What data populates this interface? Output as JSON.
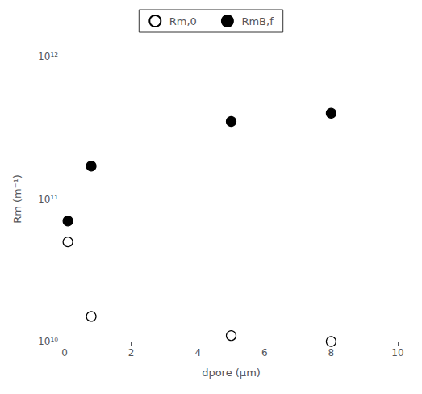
{
  "chart_data": {
    "type": "scatter",
    "x_label": "dpore (μm)",
    "y_label": "Rm (m⁻¹)",
    "series": [
      {
        "name": "Rm,0",
        "marker": "open_circle",
        "color": "black",
        "x": [
          0.1,
          0.8,
          5.0,
          8.0
        ],
        "values": [
          50000000000.0,
          15000000000.0,
          11000000000.0,
          10000000000.0
        ]
      },
      {
        "name": "RmB,f",
        "marker": "filled_circle",
        "color": "black",
        "x": [
          0.1,
          0.8,
          5.0,
          8.0
        ],
        "values": [
          70000000000.0,
          170000000000.0,
          350000000000.0,
          400000000000.0
        ]
      }
    ],
    "xlim": [
      0,
      10
    ],
    "xticks": [
      0,
      2,
      4,
      6,
      8,
      10
    ],
    "ylim": [
      10000000000.0,
      1000000000000.0
    ],
    "yticks": [
      {
        "value": 10000000000.0,
        "label": "10¹⁰"
      },
      {
        "value": 100000000000.0,
        "label": "10¹¹"
      },
      {
        "value": 1000000000000.0,
        "label": "10¹²"
      }
    ],
    "log": "y",
    "grid": false,
    "legend": "top"
  }
}
